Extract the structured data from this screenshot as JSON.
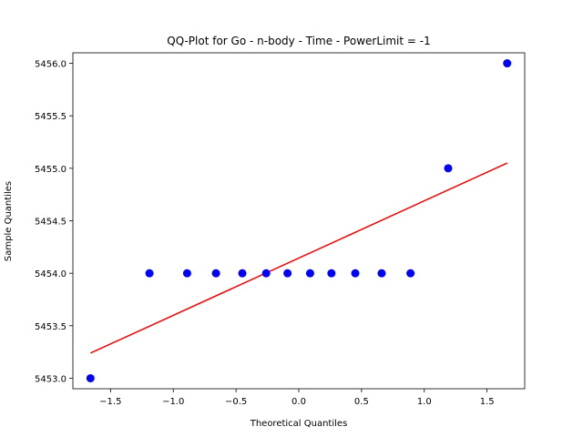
{
  "chart_data": {
    "type": "scatter",
    "title": "QQ-Plot for Go - n-body - Time - PowerLimit = -1",
    "xlabel": "Theoretical Quantiles",
    "ylabel": "Sample Quantiles",
    "xlim": [
      -1.8,
      1.8
    ],
    "ylim": [
      5452.9,
      5456.1
    ],
    "xticks": [
      -1.5,
      -1.0,
      -0.5,
      0.0,
      0.5,
      1.0,
      1.5
    ],
    "xtick_labels": [
      "−1.5",
      "−1.0",
      "−0.5",
      "0.0",
      "0.5",
      "1.0",
      "1.5"
    ],
    "yticks": [
      5453.0,
      5453.5,
      5454.0,
      5454.5,
      5455.0,
      5455.5,
      5456.0
    ],
    "ytick_labels": [
      "5453.0",
      "5453.5",
      "5454.0",
      "5454.5",
      "5455.0",
      "5455.5",
      "5456.0"
    ],
    "grid": false,
    "series": [
      {
        "kind": "points",
        "color": "#0000ff",
        "x": [
          -1.66,
          -1.19,
          -0.89,
          -0.66,
          -0.45,
          -0.26,
          -0.09,
          0.09,
          0.26,
          0.45,
          0.66,
          0.89,
          1.19,
          1.66
        ],
        "y": [
          5453.0,
          5454.0,
          5454.0,
          5454.0,
          5454.0,
          5454.0,
          5454.0,
          5454.0,
          5454.0,
          5454.0,
          5454.0,
          5454.0,
          5455.0,
          5456.0
        ]
      },
      {
        "kind": "line",
        "color": "#ff0000",
        "x": [
          -1.66,
          1.66
        ],
        "y": [
          5453.24,
          5455.05
        ]
      }
    ]
  }
}
